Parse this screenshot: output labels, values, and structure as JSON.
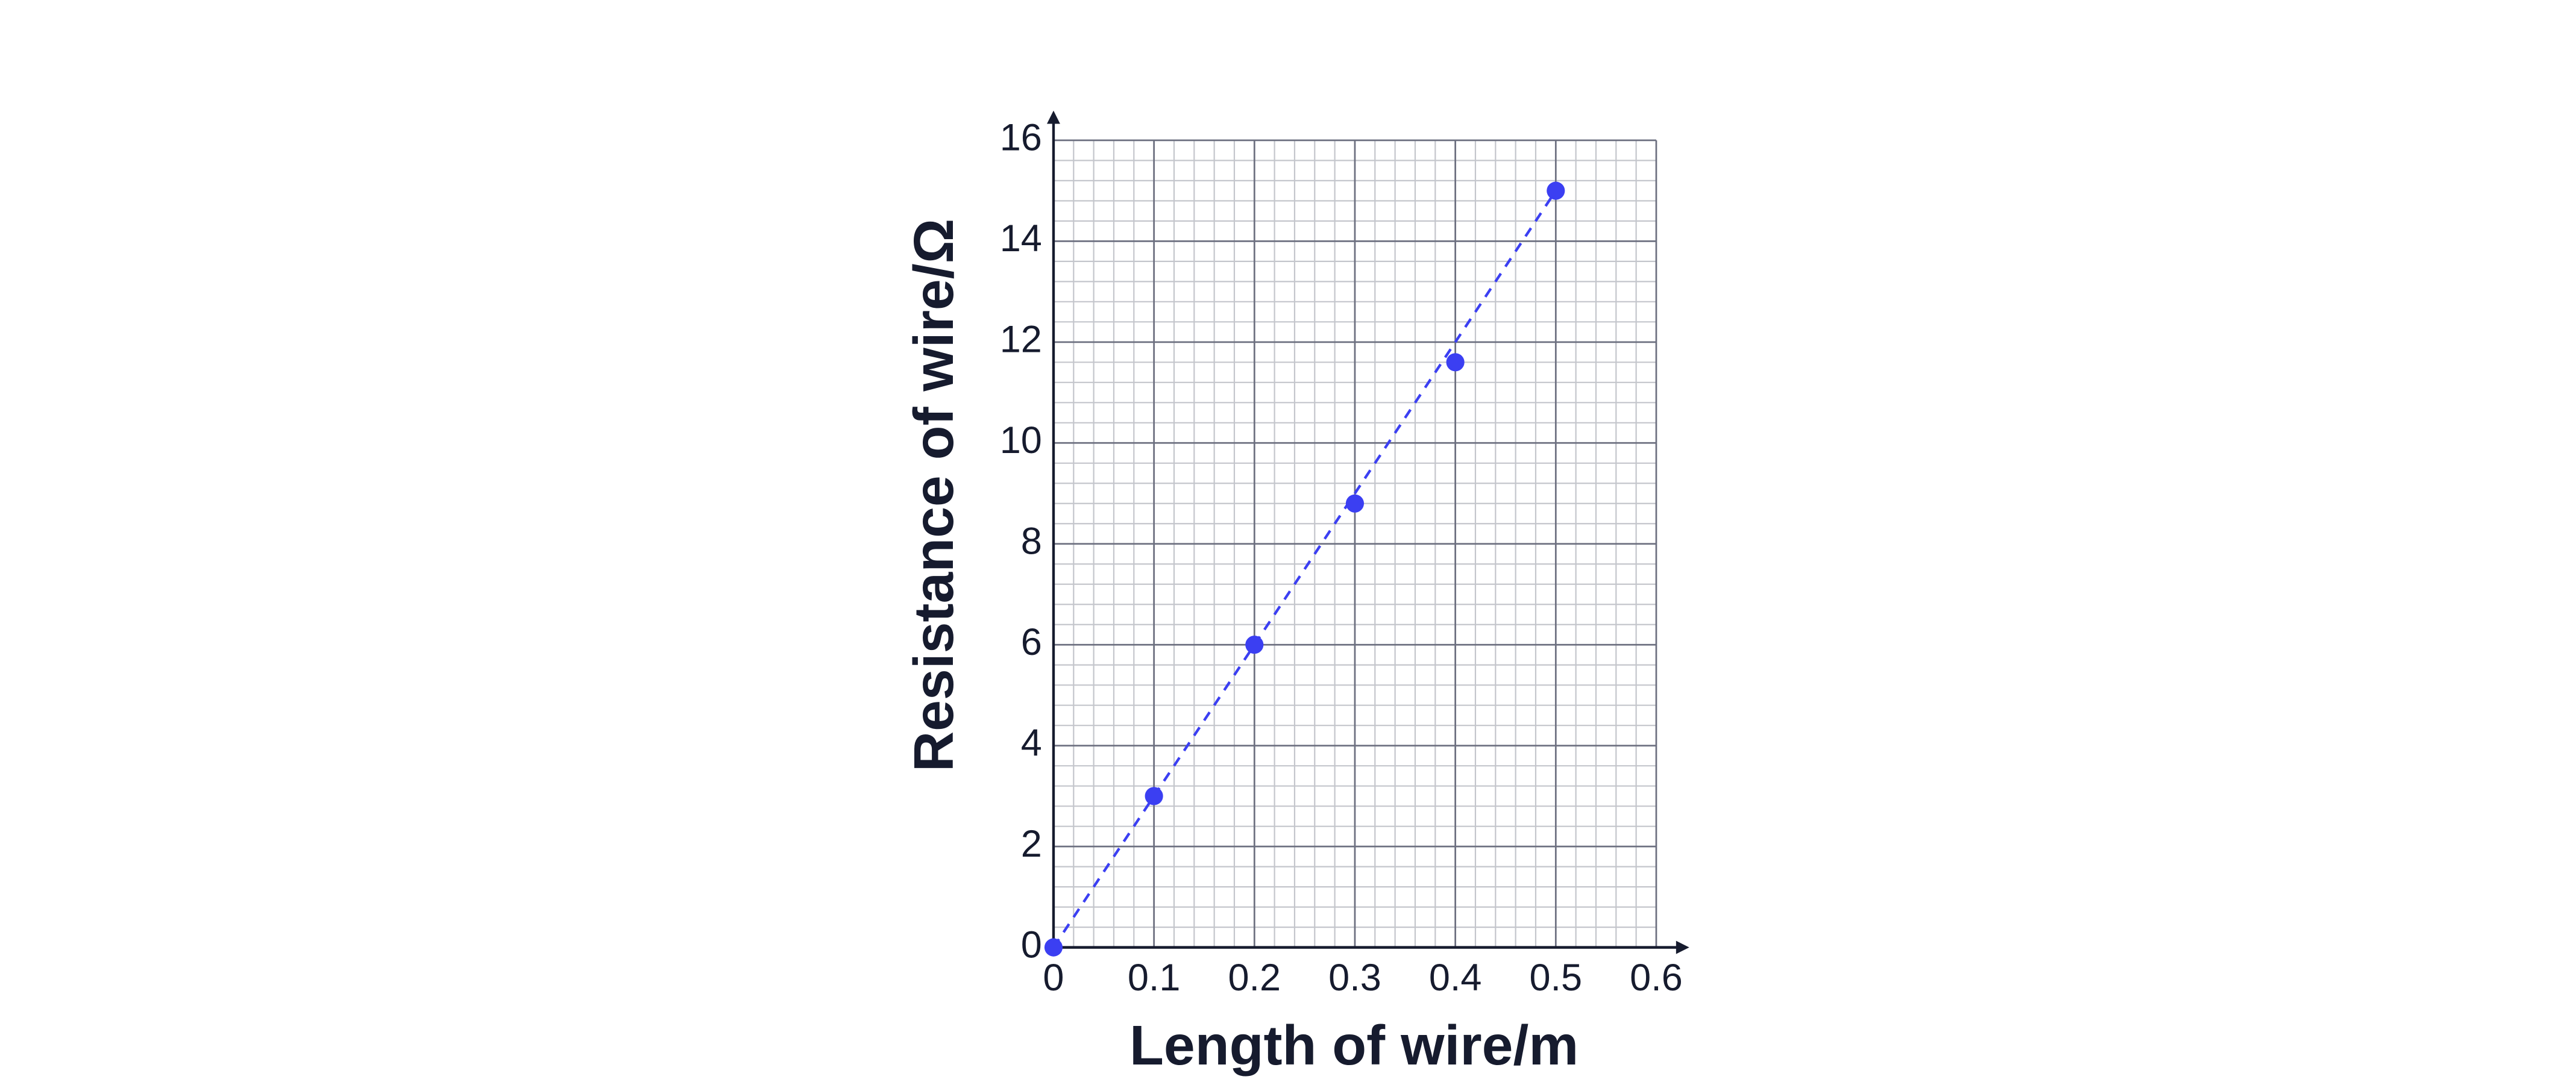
{
  "chart_data": {
    "type": "scatter",
    "x_label": "Length of wire/m",
    "y_label": "Resistance of wire/Ω",
    "x": [
      0,
      0.1,
      0.2,
      0.3,
      0.4,
      0.5
    ],
    "values": [
      0,
      3,
      6,
      8.8,
      11.6,
      15
    ],
    "color": "#3b3ff2",
    "fit_line": {
      "x": [
        0,
        0.5
      ],
      "y": [
        0,
        15
      ],
      "color": "#3b3ff2",
      "dashed": true
    },
    "xlim": [
      0,
      0.6
    ],
    "ylim": [
      0,
      16
    ],
    "xticks": [
      0,
      0.1,
      0.2,
      0.3,
      0.4,
      0.5,
      0.6
    ],
    "yticks": [
      0,
      2,
      4,
      6,
      8,
      10,
      12,
      14,
      16
    ],
    "grid": true,
    "minor_divisions": 5
  }
}
